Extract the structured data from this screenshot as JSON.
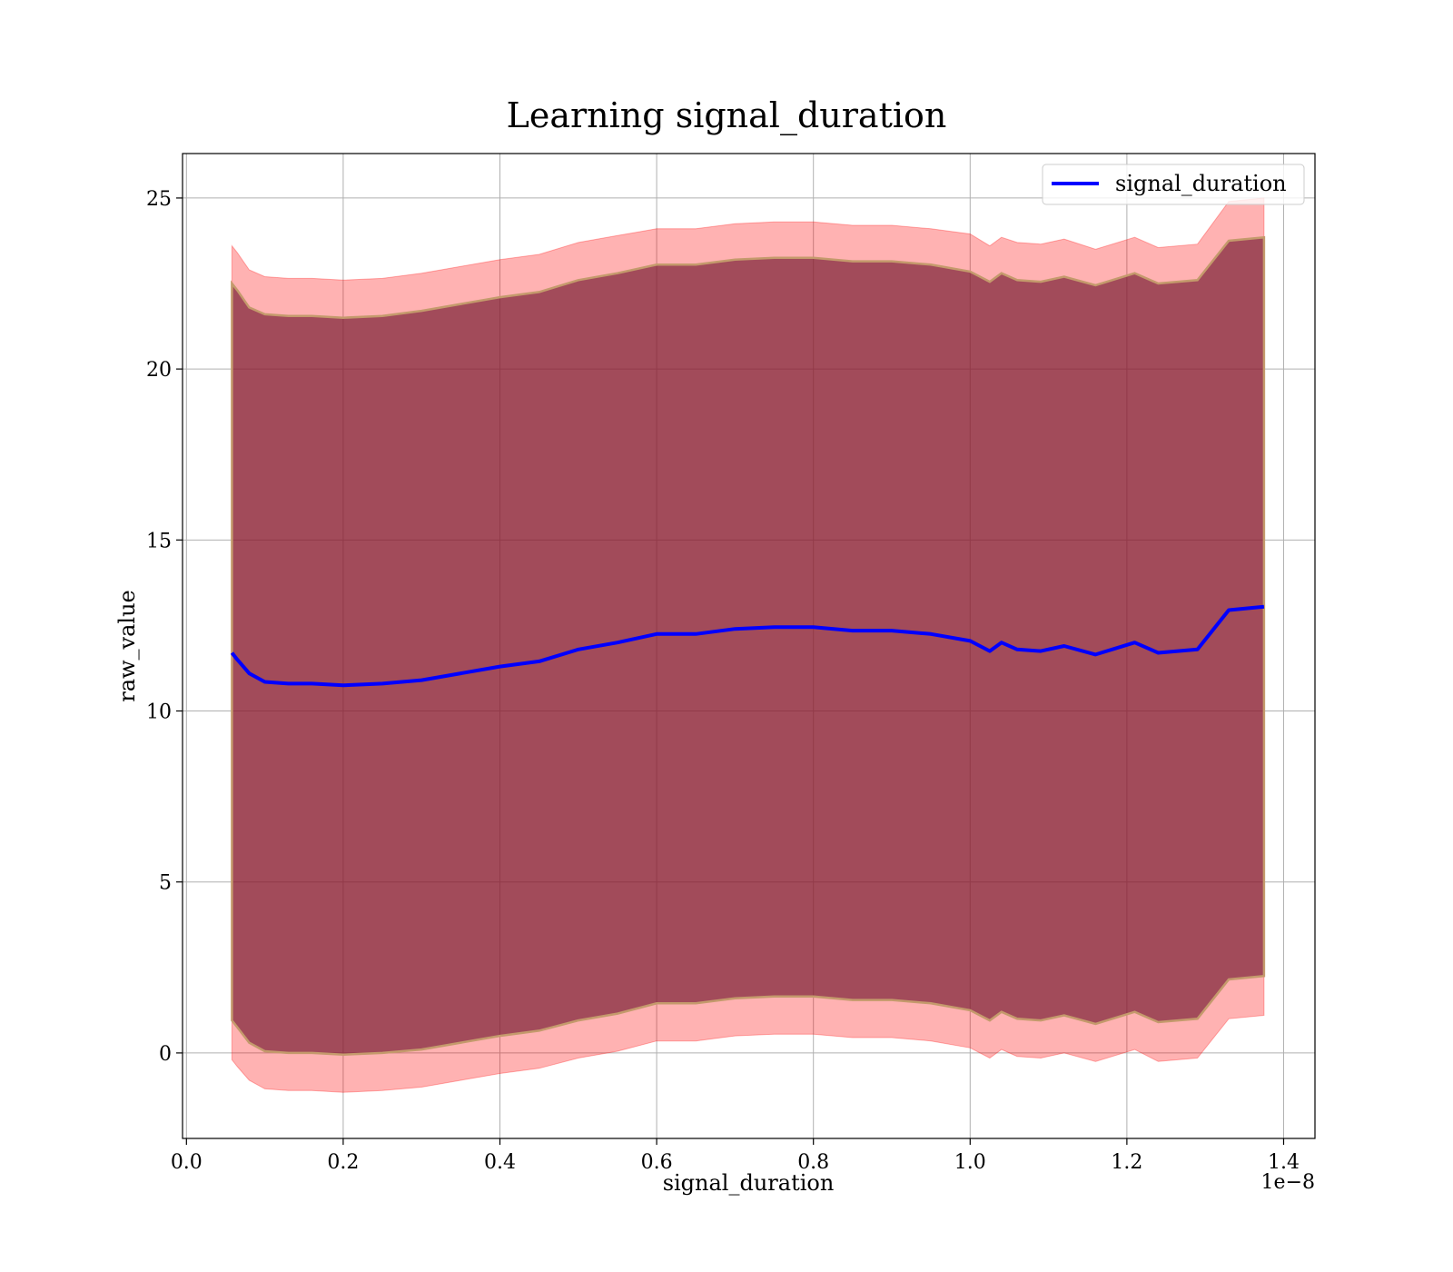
{
  "chart_data": {
    "type": "line",
    "title": "Learning signal_duration",
    "xlabel": "signal_duration",
    "ylabel": "raw_value",
    "x_offset_label": "1e−8",
    "xlim": [
      -0.005,
      1.44
    ],
    "ylim": [
      -2.5,
      26.3
    ],
    "x_ticks": [
      0.0,
      0.2,
      0.4,
      0.6,
      0.8,
      1.0,
      1.2,
      1.4
    ],
    "x_tick_labels": [
      "0.0",
      "0.2",
      "0.4",
      "0.6",
      "0.8",
      "1.0",
      "1.2",
      "1.4"
    ],
    "y_ticks": [
      0,
      5,
      10,
      15,
      20,
      25
    ],
    "y_tick_labels": [
      "0",
      "5",
      "10",
      "15",
      "20",
      "25"
    ],
    "grid": true,
    "legend_position": "top-right",
    "colors": {
      "line": "#0000ff",
      "outer_band": "#ff0000",
      "inner_band": "#7a2035",
      "inner_band_edge": "#c49a6c"
    },
    "series": [
      {
        "name": "signal_duration",
        "x": [
          0.058,
          0.065,
          0.08,
          0.1,
          0.13,
          0.16,
          0.2,
          0.25,
          0.3,
          0.35,
          0.4,
          0.45,
          0.5,
          0.55,
          0.6,
          0.65,
          0.7,
          0.75,
          0.8,
          0.85,
          0.9,
          0.95,
          1.0,
          1.025,
          1.04,
          1.06,
          1.09,
          1.12,
          1.16,
          1.21,
          1.24,
          1.29,
          1.33,
          1.375
        ],
        "y": [
          11.7,
          11.5,
          11.1,
          10.85,
          10.8,
          10.8,
          10.75,
          10.8,
          10.9,
          11.1,
          11.3,
          11.45,
          11.8,
          12.0,
          12.25,
          12.25,
          12.4,
          12.45,
          12.45,
          12.35,
          12.35,
          12.25,
          12.05,
          11.75,
          12.0,
          11.8,
          11.75,
          11.9,
          11.65,
          12.0,
          11.7,
          11.8,
          12.95,
          13.05
        ]
      }
    ],
    "bands": [
      {
        "kind": "outer",
        "x": [
          0.058,
          0.065,
          0.08,
          0.1,
          0.13,
          0.16,
          0.2,
          0.25,
          0.3,
          0.35,
          0.4,
          0.45,
          0.5,
          0.55,
          0.6,
          0.65,
          0.7,
          0.75,
          0.8,
          0.85,
          0.9,
          0.95,
          1.0,
          1.025,
          1.04,
          1.06,
          1.09,
          1.12,
          1.16,
          1.21,
          1.24,
          1.29,
          1.33,
          1.375
        ],
        "upper": [
          23.6,
          23.4,
          22.9,
          22.7,
          22.65,
          22.65,
          22.6,
          22.65,
          22.8,
          23.0,
          23.2,
          23.35,
          23.7,
          23.9,
          24.1,
          24.1,
          24.25,
          24.3,
          24.3,
          24.2,
          24.2,
          24.1,
          23.95,
          23.6,
          23.85,
          23.7,
          23.65,
          23.8,
          23.5,
          23.85,
          23.55,
          23.65,
          24.9,
          25.0
        ],
        "lower": [
          -0.2,
          -0.4,
          -0.8,
          -1.05,
          -1.1,
          -1.1,
          -1.15,
          -1.1,
          -1.0,
          -0.8,
          -0.6,
          -0.45,
          -0.15,
          0.05,
          0.35,
          0.35,
          0.5,
          0.55,
          0.55,
          0.45,
          0.45,
          0.35,
          0.15,
          -0.15,
          0.1,
          -0.1,
          -0.15,
          0.0,
          -0.25,
          0.1,
          -0.25,
          -0.15,
          1.0,
          1.1
        ]
      },
      {
        "kind": "inner",
        "x": [
          0.058,
          0.065,
          0.08,
          0.1,
          0.13,
          0.16,
          0.2,
          0.25,
          0.3,
          0.35,
          0.4,
          0.45,
          0.5,
          0.55,
          0.6,
          0.65,
          0.7,
          0.75,
          0.8,
          0.85,
          0.9,
          0.95,
          1.0,
          1.025,
          1.04,
          1.06,
          1.09,
          1.12,
          1.16,
          1.21,
          1.24,
          1.29,
          1.33,
          1.375
        ],
        "upper": [
          22.5,
          22.3,
          21.8,
          21.6,
          21.55,
          21.55,
          21.5,
          21.55,
          21.7,
          21.9,
          22.1,
          22.25,
          22.6,
          22.8,
          23.05,
          23.05,
          23.2,
          23.25,
          23.25,
          23.15,
          23.15,
          23.05,
          22.85,
          22.55,
          22.8,
          22.6,
          22.55,
          22.7,
          22.45,
          22.8,
          22.5,
          22.6,
          23.75,
          23.85
        ],
        "lower": [
          0.95,
          0.75,
          0.3,
          0.05,
          0.0,
          0.0,
          -0.05,
          0.0,
          0.1,
          0.3,
          0.5,
          0.65,
          0.95,
          1.15,
          1.45,
          1.45,
          1.6,
          1.65,
          1.65,
          1.55,
          1.55,
          1.45,
          1.25,
          0.95,
          1.2,
          1.0,
          0.95,
          1.1,
          0.85,
          1.2,
          0.9,
          1.0,
          2.15,
          2.25
        ]
      }
    ]
  }
}
